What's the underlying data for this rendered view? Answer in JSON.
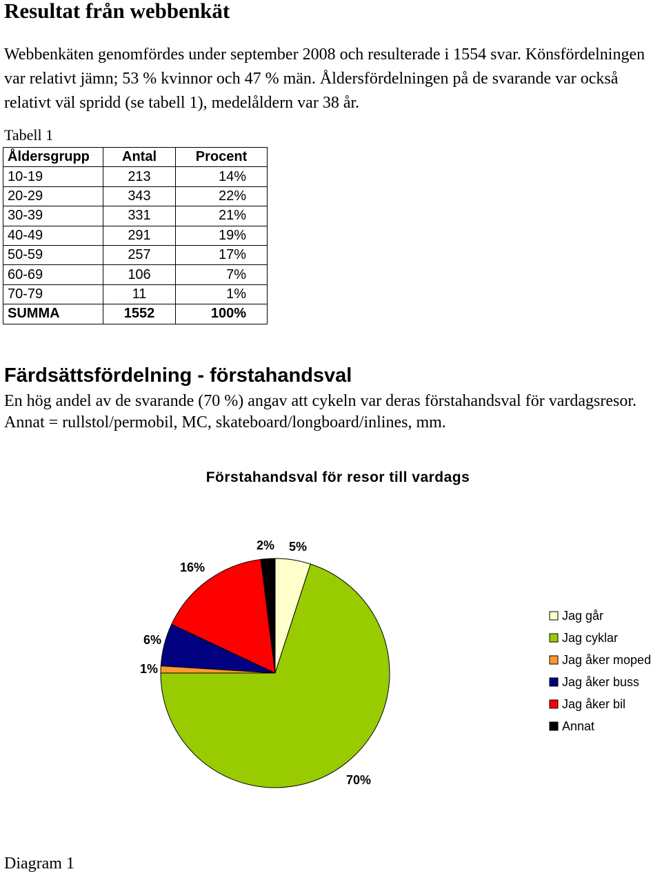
{
  "title": "Resultat från webbenkät",
  "intro": "Webbenkäten genomfördes under september 2008 och resulterade i 1554 svar. Könsfördelningen var relativt jämn; 53 % kvinnor och 47 % män. Åldersfördelningen på de svarande var också relativt väl spridd (se tabell 1), medelåldern var 38 år.",
  "table": {
    "caption": "Tabell 1",
    "headers": [
      "Åldersgrupp",
      "Antal",
      "Procent"
    ],
    "rows": [
      [
        "10-19",
        "213",
        "14%"
      ],
      [
        "20-29",
        "343",
        "22%"
      ],
      [
        "30-39",
        "331",
        "21%"
      ],
      [
        "40-49",
        "291",
        "19%"
      ],
      [
        "50-59",
        "257",
        "17%"
      ],
      [
        "60-69",
        "106",
        "7%"
      ],
      [
        "70-79",
        "11",
        "1%"
      ]
    ],
    "total": [
      "SUMMA",
      "1552",
      "100%"
    ]
  },
  "section": {
    "heading": "Färdsättsfördelning - förstahandsval",
    "text": "En hög andel av de svarande (70 %) angav att cykeln var deras förstahandsval för vardagsresor. Annat = rullstol/permobil, MC, skateboard/longboard/inlines, mm."
  },
  "chart_data": {
    "type": "pie",
    "title": "Förstahandsval för resor till vardags",
    "legend_position": "right",
    "slices": [
      {
        "label": "Jag går",
        "value": 5,
        "data_label": "5%",
        "color": "#ffffcc"
      },
      {
        "label": "Jag cyklar",
        "value": 70,
        "data_label": "70%",
        "color": "#99cc00"
      },
      {
        "label": "Jag åker moped",
        "value": 1,
        "data_label": "1%",
        "color": "#ff9933"
      },
      {
        "label": "Jag åker buss",
        "value": 6,
        "data_label": "6%",
        "color": "#000080"
      },
      {
        "label": "Jag åker bil",
        "value": 16,
        "data_label": "16%",
        "color": "#ff0000"
      },
      {
        "label": "Annat",
        "value": 2,
        "data_label": "2%",
        "color": "#000000"
      }
    ]
  },
  "diagram_caption": "Diagram 1"
}
